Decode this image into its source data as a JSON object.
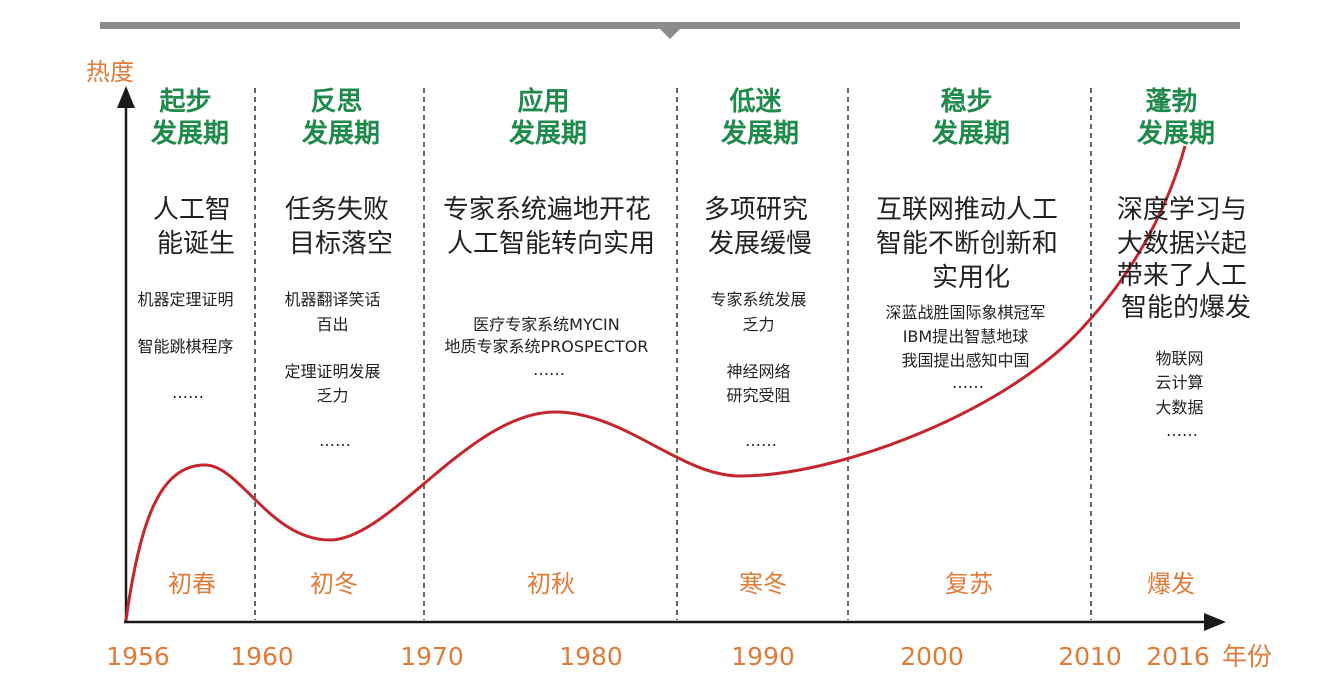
{
  "axis": {
    "y_label": "热度",
    "x_unit": "年份"
  },
  "years": [
    "1956",
    "1960",
    "1970",
    "1980",
    "1990",
    "2000",
    "2010",
    "2016"
  ],
  "phases": [
    {
      "title": [
        "起步",
        "发展期"
      ],
      "summary": [
        "人工智",
        "能诞生"
      ],
      "details": [
        "机器定理证明",
        "",
        "智能跳棋程序",
        "",
        "……"
      ],
      "season": "初春"
    },
    {
      "title": [
        "反思",
        "发展期"
      ],
      "summary": [
        "任务失败",
        "目标落空"
      ],
      "details": [
        "机器翻译笑话",
        "百出",
        "",
        "定理证明发展",
        "乏力",
        "",
        "……"
      ],
      "season": "初冬"
    },
    {
      "title": [
        "应用",
        "发展期"
      ],
      "summary": [
        "专家系统遍地开花",
        "人工智能转向实用"
      ],
      "details": [
        "医疗专家系统MYCIN",
        "地质专家系统PROSPECTOR",
        "……"
      ],
      "season": "初秋"
    },
    {
      "title": [
        "低迷",
        "发展期"
      ],
      "summary": [
        "多项研究",
        "发展缓慢"
      ],
      "details": [
        "专家系统发展",
        "乏力",
        "",
        "神经网络",
        "研究受阻",
        "",
        "……"
      ],
      "season": "寒冬"
    },
    {
      "title": [
        "稳步",
        "发展期"
      ],
      "summary": [
        "互联网推动人工",
        "智能不断创新和",
        "实用化"
      ],
      "details": [
        "深蓝战胜国际象棋冠军",
        "IBM提出智慧地球",
        "我国提出感知中国",
        "……"
      ],
      "season": "复苏"
    },
    {
      "title": [
        "蓬勃",
        "发展期"
      ],
      "summary": [
        "深度学习与",
        "大数据兴起",
        "带来了人工",
        "智能的爆发"
      ],
      "details": [
        "物联网",
        "云计算",
        "大数据",
        "……"
      ],
      "season": "爆发"
    }
  ],
  "colors": {
    "phase_title": "#1f8a4c",
    "season": "#e07b39",
    "curve": "#c4262e",
    "axis": "#1a1a1a",
    "top_bar": "#8c8c8c"
  }
}
